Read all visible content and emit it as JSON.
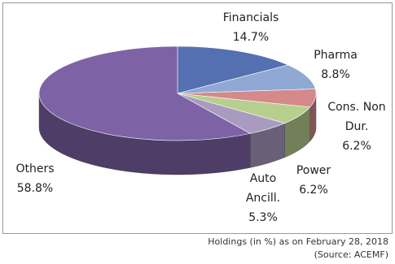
{
  "chart_data": {
    "type": "pie3d",
    "categories": [
      "Financials",
      "Pharma",
      "Cons. Non Dur.",
      "Power",
      "Auto Ancill.",
      "Others"
    ],
    "values": [
      14.7,
      8.8,
      6.2,
      6.2,
      5.3,
      58.8
    ],
    "value_labels": [
      "14.7%",
      "8.8%",
      "6.2%",
      "6.2%",
      "5.3%",
      "58.8%"
    ],
    "colors": [
      "#5470b0",
      "#8fa8d4",
      "#d4898a",
      "#b6cf8e",
      "#a99bc0",
      "#7d63a5"
    ],
    "caption": "Holdings (in %) as on February 28, 2018",
    "source": "(Source: ACEMF)"
  }
}
